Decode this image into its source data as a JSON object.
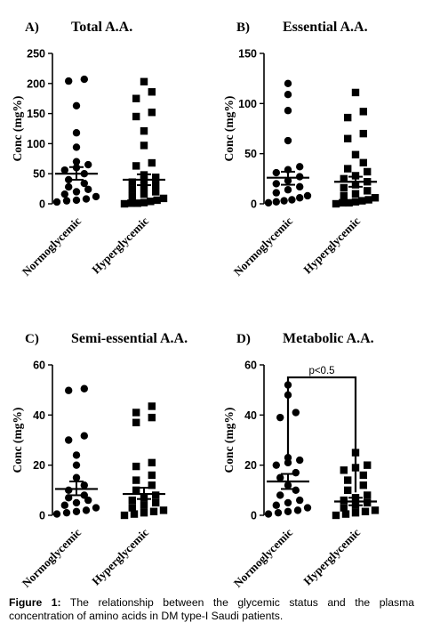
{
  "caption": {
    "label": "Figure 1:",
    "text": " The relationship between the glycemic status and the plasma concentration of amino acids in DM type-I Saudi patients."
  },
  "chart_data": [
    {
      "type": "scatter",
      "panel_letter": "A)",
      "title": "Total A.A.",
      "ylabel": "Conc (mg%)",
      "categories": [
        "Normoglycemic",
        "Hyperglycemic"
      ],
      "ylim": [
        0,
        250
      ],
      "yticks": [
        0,
        50,
        100,
        150,
        200,
        250
      ],
      "series": [
        {
          "marker": "circle",
          "mean": 50,
          "sem_low": 40,
          "sem_high": 61,
          "values": [
            207,
            204,
            163,
            118,
            94,
            70,
            65,
            60,
            56,
            50,
            40,
            34,
            28,
            24,
            20,
            16,
            12,
            8,
            6,
            5,
            3
          ]
        },
        {
          "marker": "square",
          "mean": 40,
          "sem_low": 31,
          "sem_high": 49,
          "values": [
            203,
            186,
            175,
            152,
            145,
            121,
            97,
            68,
            63,
            48,
            44,
            40,
            36,
            32,
            28,
            24,
            20,
            16,
            12,
            9,
            6,
            4,
            2,
            1,
            1,
            0
          ]
        }
      ]
    },
    {
      "type": "scatter",
      "panel_letter": "B)",
      "title": "Essential A.A.",
      "ylabel": "Conc (mg%)",
      "categories": [
        "Normoglycemic",
        "Hyperglycemic"
      ],
      "ylim": [
        0,
        150
      ],
      "yticks": [
        0,
        50,
        100,
        150
      ],
      "series": [
        {
          "marker": "circle",
          "mean": 26,
          "sem_low": 19,
          "sem_high": 32,
          "values": [
            120,
            109,
            93,
            63,
            37,
            34,
            31,
            27,
            23,
            20,
            17,
            14,
            11,
            8,
            6,
            4,
            3,
            2,
            1
          ]
        },
        {
          "marker": "square",
          "mean": 22,
          "sem_low": 17,
          "sem_high": 27,
          "values": [
            111,
            92,
            86,
            70,
            65,
            49,
            41,
            35,
            32,
            28,
            25,
            22,
            19,
            16,
            13,
            10,
            8,
            6,
            4,
            3,
            2,
            1,
            1,
            0
          ]
        }
      ]
    },
    {
      "type": "scatter",
      "panel_letter": "C)",
      "title": "Semi-essential A.A.",
      "ylabel": "Conc (mg%)",
      "categories": [
        "Normoglycemic",
        "Hyperglycemic"
      ],
      "ylim": [
        0,
        60
      ],
      "yticks": [
        0,
        20,
        40,
        60
      ],
      "series": [
        {
          "marker": "circle",
          "mean": 10.5,
          "sem_low": 8,
          "sem_high": 13.5,
          "values": [
            50.5,
            49.8,
            31.7,
            30,
            24,
            20,
            15,
            12,
            10,
            8,
            7,
            6,
            5,
            4,
            3,
            2,
            1.5,
            1,
            0.5
          ]
        },
        {
          "marker": "square",
          "mean": 8.5,
          "sem_low": 6.5,
          "sem_high": 11,
          "values": [
            43.5,
            41,
            39,
            37,
            21,
            19.5,
            16,
            14,
            12,
            10,
            8,
            7,
            6,
            5,
            4,
            3,
            2,
            1.5,
            1,
            0.5,
            0
          ]
        }
      ]
    },
    {
      "type": "scatter",
      "panel_letter": "D)",
      "title": "Metabolic A.A.",
      "ylabel": "Conc (mg%)",
      "categories": [
        "Normoglycemic",
        "Hyperglycemic"
      ],
      "ylim": [
        0,
        60
      ],
      "yticks": [
        0,
        20,
        40,
        60
      ],
      "annotation": {
        "text": "p<0.5",
        "bracket_y": 55
      },
      "series": [
        {
          "marker": "circle",
          "mean": 13.5,
          "sem_low": 10.5,
          "sem_high": 16.5,
          "values": [
            52,
            48,
            41,
            39,
            23,
            22,
            21,
            20,
            17,
            15,
            12,
            10,
            8,
            6,
            5,
            4,
            3,
            2,
            1.5,
            1,
            0.5
          ]
        },
        {
          "marker": "square",
          "mean": 5.5,
          "sem_low": 4,
          "sem_high": 7,
          "values": [
            25,
            20,
            19,
            18,
            16,
            14,
            12,
            10,
            8,
            7,
            6,
            5,
            4,
            3,
            2,
            1.5,
            1,
            0.5,
            0
          ]
        }
      ]
    }
  ]
}
